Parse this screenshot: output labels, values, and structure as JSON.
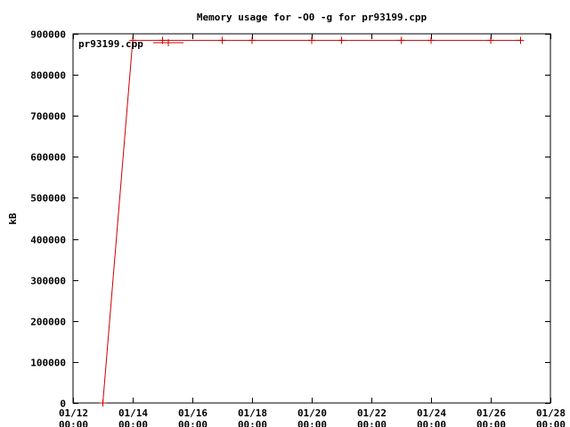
{
  "chart_data": {
    "type": "line",
    "title": "Memory usage for -O0 -g for pr93199.cpp",
    "xlabel": "",
    "ylabel": "kB",
    "xlim": [
      "2020-01-12",
      "2020-01-28"
    ],
    "ylim": [
      0,
      900000
    ],
    "x_ticks": [
      {
        "value": "2020-01-12",
        "date_label": "01/12",
        "time_label": "00:00"
      },
      {
        "value": "2020-01-14",
        "date_label": "01/14",
        "time_label": "00:00"
      },
      {
        "value": "2020-01-16",
        "date_label": "01/16",
        "time_label": "00:00"
      },
      {
        "value": "2020-01-18",
        "date_label": "01/18",
        "time_label": "00:00"
      },
      {
        "value": "2020-01-20",
        "date_label": "01/20",
        "time_label": "00:00"
      },
      {
        "value": "2020-01-22",
        "date_label": "01/22",
        "time_label": "00:00"
      },
      {
        "value": "2020-01-24",
        "date_label": "01/24",
        "time_label": "00:00"
      },
      {
        "value": "2020-01-26",
        "date_label": "01/26",
        "time_label": "00:00"
      },
      {
        "value": "2020-01-28",
        "date_label": "01/28",
        "time_label": "00:00"
      }
    ],
    "y_ticks": [
      {
        "value": 0,
        "label": "0"
      },
      {
        "value": 100000,
        "label": "100000"
      },
      {
        "value": 200000,
        "label": "200000"
      },
      {
        "value": 300000,
        "label": "300000"
      },
      {
        "value": 400000,
        "label": "400000"
      },
      {
        "value": 500000,
        "label": "500000"
      },
      {
        "value": 600000,
        "label": "600000"
      },
      {
        "value": 700000,
        "label": "700000"
      },
      {
        "value": 800000,
        "label": "800000"
      },
      {
        "value": 900000,
        "label": "900000"
      }
    ],
    "grid": false,
    "legend_position": "top-left",
    "series": [
      {
        "name": "pr93199.cpp",
        "color": "#cc0000",
        "marker": "plus",
        "points": [
          {
            "x": "2020-01-13T00:00",
            "y": 0
          },
          {
            "x": "2020-01-14T00:00",
            "y": 884000
          },
          {
            "x": "2020-01-15T00:00",
            "y": 884000
          },
          {
            "x": "2020-01-17T00:00",
            "y": 884000
          },
          {
            "x": "2020-01-18T00:00",
            "y": 884000
          },
          {
            "x": "2020-01-20T00:00",
            "y": 884000
          },
          {
            "x": "2020-01-21T00:00",
            "y": 884000
          },
          {
            "x": "2020-01-23T00:00",
            "y": 884000
          },
          {
            "x": "2020-01-24T00:00",
            "y": 884000
          },
          {
            "x": "2020-01-26T00:00",
            "y": 884000
          },
          {
            "x": "2020-01-27T00:00",
            "y": 884000
          }
        ]
      }
    ]
  }
}
